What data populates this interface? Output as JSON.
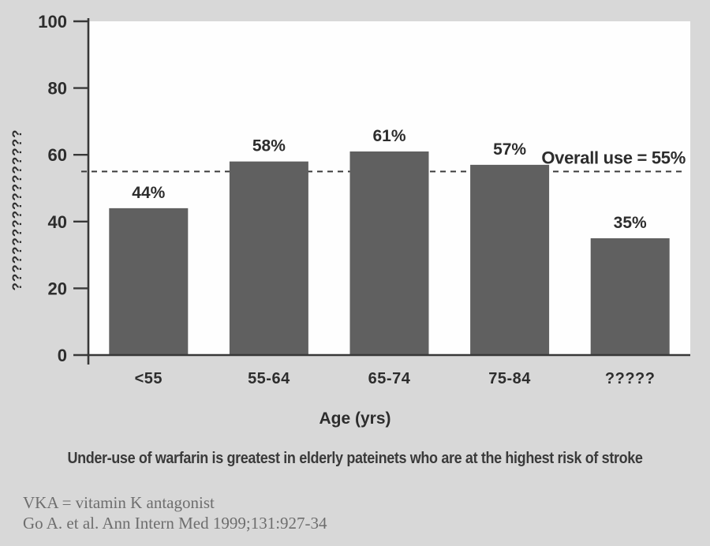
{
  "page": {
    "background": "#d8d8d8"
  },
  "chart_data": {
    "type": "bar",
    "categories": [
      "<55",
      "55-64",
      "65-74",
      "75-84",
      "?????"
    ],
    "values": [
      44,
      58,
      61,
      57,
      35
    ],
    "value_labels": [
      "44%",
      "58%",
      "61%",
      "57%",
      "35%"
    ],
    "xlabel": "Age (yrs)",
    "ylabel": "??????????????????",
    "ylim": [
      0,
      100
    ],
    "yticks": [
      0,
      20,
      40,
      60,
      80,
      100
    ],
    "reference_line": {
      "value": 55,
      "label": "Overall use = 55%",
      "style": "dashed"
    },
    "grid": false,
    "legend": "none",
    "colors": {
      "bar": "#606060",
      "axis": "#383838",
      "text": "#2d2d2d",
      "dashed_line": "#3c3c3c",
      "plot_background": "#fefefe"
    }
  },
  "caption": "Under-use of warfarin is greatest in elderly pateinets who are at the highest risk of stroke",
  "footnotes": [
    "VKA = vitamin K antagonist",
    "Go A. et al. Ann Intern Med 1999;131:927-34"
  ]
}
